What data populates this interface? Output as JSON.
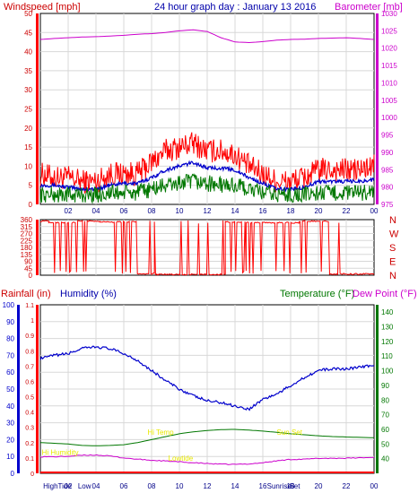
{
  "header": {
    "windspeed_label": "Windspeed [mph]",
    "graph_title": "24 hour graph day : January 13 2016",
    "barometer_label": "Barometer [mb]"
  },
  "bottom_header": {
    "rainfall_label": "Rainfall (in)",
    "humidity_label": "Humidity (%)",
    "temperature_label": "Temperature (°F)",
    "dewpoint_label": "Dew Point (°F)"
  },
  "colors": {
    "wind": "#ff0000",
    "wind_avg": "#0000cc",
    "wind_low": "#007700",
    "barometer": "#cc00cc",
    "direction": "#ff0000",
    "humidity": "#0000cc",
    "temperature": "#007700",
    "dewpoint": "#cc00cc",
    "rain": "#ff0000",
    "annotation": "#e8e800"
  },
  "x_ticks": [
    "02",
    "04",
    "06",
    "08",
    "10",
    "12",
    "14",
    "16",
    "18",
    "20",
    "22",
    "00"
  ],
  "chart_data": [
    {
      "type": "line",
      "title": "24 hour graph day : January 13 2016",
      "xlabel": "",
      "ylabel": "Windspeed [mph]",
      "ylim": [
        0,
        50
      ],
      "y_ticks": [
        0,
        5,
        10,
        15,
        20,
        25,
        30,
        35,
        40,
        45,
        50
      ],
      "y2label": "Barometer [mb]",
      "y2lim": [
        975,
        1030
      ],
      "y2_ticks": [
        975,
        980,
        985,
        990,
        995,
        1000,
        1005,
        1010,
        1015,
        1020,
        1025,
        1030
      ],
      "grid": true,
      "x_hours": [
        0,
        1,
        2,
        3,
        4,
        5,
        6,
        7,
        8,
        9,
        10,
        11,
        12,
        13,
        14,
        15,
        16,
        17,
        18,
        19,
        20,
        21,
        22,
        23,
        24
      ],
      "series": [
        {
          "name": "Windspeed [mph]",
          "axis": "left",
          "values": [
            8,
            7,
            7,
            6,
            6,
            8,
            8,
            8,
            11,
            14,
            15,
            16,
            14,
            14,
            13,
            10,
            8,
            6,
            6,
            7,
            9,
            9,
            9,
            9,
            10
          ]
        },
        {
          "name": "",
          "axis": "left",
          "values": [
            5,
            5,
            4.5,
            4,
            4,
            5,
            5.5,
            5.5,
            7,
            9,
            10,
            11,
            9.5,
            9.5,
            9,
            7,
            5.5,
            4,
            4,
            4.5,
            6,
            6,
            6,
            6,
            6.5
          ]
        },
        {
          "name": "",
          "axis": "left",
          "values": [
            2.5,
            2.5,
            2.5,
            2.5,
            2.5,
            3,
            3,
            3,
            4,
            5,
            5.5,
            6,
            5.5,
            5,
            5,
            4,
            3,
            2.5,
            2.5,
            2.5,
            3,
            3,
            3,
            3,
            3.5
          ]
        },
        {
          "name": "Barometer [mb]",
          "axis": "right",
          "values": [
            1022.5,
            1022.8,
            1023,
            1023.2,
            1023.3,
            1023.5,
            1023.7,
            1024,
            1024.2,
            1024.5,
            1025,
            1025.3,
            1024.8,
            1023,
            1021.8,
            1021.6,
            1021.9,
            1022.3,
            1022.5,
            1022.6,
            1022.8,
            1022.9,
            1023,
            1022.8,
            1022.5
          ]
        }
      ]
    },
    {
      "type": "scatter",
      "title": "",
      "ylabel": "",
      "ylim": [
        0,
        360
      ],
      "y_ticks": [
        0,
        45,
        90,
        135,
        180,
        225,
        270,
        315,
        360
      ],
      "right_labels": [
        "N",
        "W",
        "S",
        "E",
        "N"
      ],
      "grid": true,
      "series": [
        {
          "name": "",
          "segments": [
            {
              "start": 0.0,
              "end": 0.6,
              "value": 350
            },
            {
              "start": 0.6,
              "end": 2.6,
              "value": 340
            },
            {
              "start": 2.6,
              "end": 4.3,
              "value": 350
            },
            {
              "start": 4.3,
              "end": 6.9,
              "value": 345
            },
            {
              "start": 6.9,
              "end": 8.2,
              "value": 10
            },
            {
              "start": 8.2,
              "end": 13.3,
              "value": 5
            },
            {
              "start": 13.3,
              "end": 14.8,
              "value": 345
            },
            {
              "start": 14.8,
              "end": 18.6,
              "value": 340
            },
            {
              "start": 18.6,
              "end": 20.8,
              "value": 350
            },
            {
              "start": 20.8,
              "end": 24.0,
              "value": 8
            }
          ]
        }
      ]
    },
    {
      "type": "line",
      "title": "",
      "ylabel": "Humidity (%)",
      "ylim": [
        0,
        100
      ],
      "y_ticks": [
        0,
        10,
        20,
        30,
        40,
        50,
        60,
        70,
        80,
        90,
        100
      ],
      "rain_ylim": [
        0,
        1.1
      ],
      "rain_ticks": [
        "0",
        "0.1",
        "0.2",
        "0.3",
        "0.4",
        "0.5",
        "0.6",
        "0.7",
        "0.8",
        "0.9",
        "1",
        "1.1"
      ],
      "y2label": "Temperature (°F)",
      "y2lim": [
        30,
        145
      ],
      "y2_ticks": [
        40,
        50,
        60,
        70,
        80,
        90,
        100,
        110,
        120,
        130,
        140
      ],
      "grid": true,
      "x_hours": [
        0,
        1,
        2,
        3,
        4,
        5,
        6,
        7,
        8,
        9,
        10,
        11,
        12,
        13,
        14,
        15,
        16,
        17,
        18,
        19,
        20,
        21,
        22,
        23,
        24
      ],
      "series": [
        {
          "name": "Humidity (%)",
          "axis": "left",
          "values": [
            68,
            70,
            71,
            74,
            75,
            74,
            71,
            67,
            61,
            55,
            50,
            46,
            43,
            42,
            40,
            38,
            44,
            47,
            52,
            57,
            61,
            62,
            62,
            63,
            64
          ]
        },
        {
          "name": "Temperature (°F)",
          "axis": "right",
          "values": [
            51,
            50.5,
            50,
            49,
            48.8,
            49,
            49.5,
            51,
            53,
            55,
            57,
            58.3,
            59.2,
            59.8,
            60,
            59.5,
            58.8,
            58,
            57,
            56.3,
            55.6,
            55.1,
            54.8,
            54.5,
            54.3
          ]
        },
        {
          "name": "Dew Point (°F)",
          "axis": "right",
          "values": [
            41.3,
            41.3,
            41.6,
            42.3,
            42.5,
            41.8,
            40.5,
            39.6,
            38.9,
            38.4,
            37.8,
            37.2,
            36.7,
            36.2,
            36.1,
            36.4,
            37.2,
            38.5,
            39.5,
            39.6,
            40.2,
            40.3,
            40.3,
            40.6,
            40.8
          ]
        },
        {
          "name": "Rainfall (in)",
          "axis": "rain",
          "values": [
            0,
            0,
            0,
            0,
            0,
            0,
            0,
            0,
            0,
            0,
            0,
            0,
            0,
            0,
            0,
            0,
            0,
            0,
            0,
            0,
            0,
            0,
            0,
            0,
            0
          ]
        }
      ],
      "annotations": [
        {
          "text": "Hi Humidity",
          "hour": 0.1,
          "value": 11
        },
        {
          "text": "Hi Temp",
          "hour": 7.7,
          "value": 22.8
        },
        {
          "text": "Lowtide",
          "hour": 9.2,
          "value": 7.5
        },
        {
          "text": "Sun Set",
          "hour": 17.0,
          "value": 22.8
        }
      ],
      "bottom_annotations": [
        {
          "text": "HighTide",
          "hour": 0.2
        },
        {
          "text": "Low",
          "hour": 2.7
        },
        {
          "text": "Sunrise",
          "hour": 16.3
        },
        {
          "text": "Set",
          "hour": 17.9
        }
      ]
    }
  ]
}
